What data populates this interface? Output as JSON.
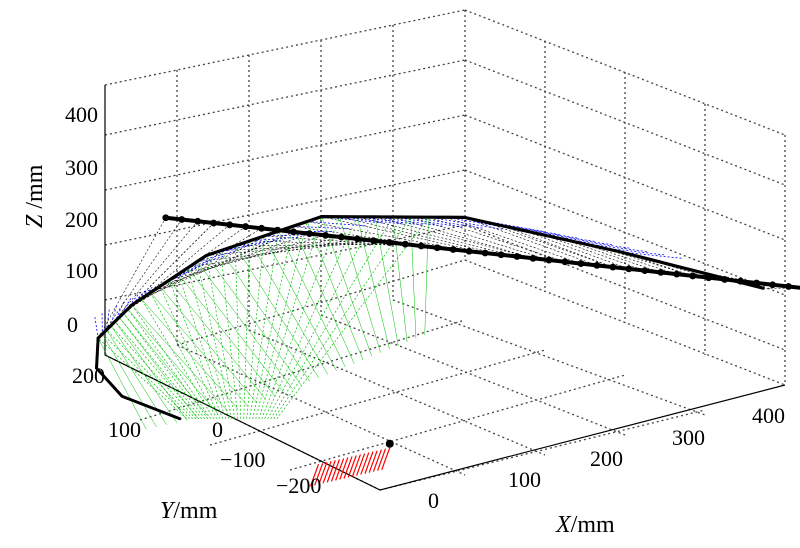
{
  "chart_data": {
    "type": "3d-line",
    "title": "",
    "axes": {
      "x": {
        "var": "X",
        "unit": "/mm",
        "ticks": [
          "0",
          "100",
          "200",
          "300",
          "400"
        ],
        "range": [
          0,
          400
        ]
      },
      "y": {
        "var": "Y",
        "unit": "/mm",
        "ticks": [
          "200",
          "100",
          "0",
          "−100",
          "−200"
        ],
        "range": [
          -200,
          200
        ]
      },
      "z": {
        "var": "Z",
        "unit": " /mm",
        "ticks": [
          "0",
          "100",
          "200",
          "300",
          "400"
        ],
        "range": [
          0,
          400
        ]
      }
    },
    "grid": true,
    "series": [
      {
        "color": "#000000",
        "style": "thick-dotted-line",
        "points": [
          [
            60,
            200,
            180
          ],
          [
            460,
            -140,
            90
          ]
        ]
      },
      {
        "color": "#000000",
        "style": "thick-arc",
        "points": [
          [
            0,
            210,
            20
          ],
          [
            30,
            205,
            60
          ],
          [
            90,
            185,
            120
          ],
          [
            180,
            150,
            160
          ],
          [
            280,
            90,
            150
          ],
          [
            380,
            10,
            100
          ],
          [
            460,
            -80,
            60
          ]
        ]
      },
      {
        "color": "#0000ff",
        "style": "mesh-band",
        "points": [
          [
            -10,
            200,
            60
          ],
          [
            40,
            190,
            90
          ],
          [
            120,
            170,
            130
          ],
          [
            220,
            120,
            150
          ],
          [
            330,
            50,
            130
          ],
          [
            420,
            -20,
            90
          ]
        ]
      },
      {
        "color": "#00c000",
        "style": "mesh-fan",
        "points": [
          [
            0,
            140,
            -80
          ],
          [
            60,
            80,
            -40
          ],
          [
            120,
            40,
            10
          ],
          [
            180,
            0,
            60
          ]
        ]
      },
      {
        "color": "#ff0000",
        "style": "mesh-patch",
        "points": [
          [
            40,
            -40,
            -90
          ],
          [
            90,
            -70,
            -70
          ]
        ]
      }
    ]
  },
  "colors": {
    "grid": "#444444",
    "axis": "#000000",
    "meshBlack": "#000000",
    "meshBlue": "#0000ff",
    "meshGreen": "#00c000",
    "meshRed": "#ff0000"
  }
}
